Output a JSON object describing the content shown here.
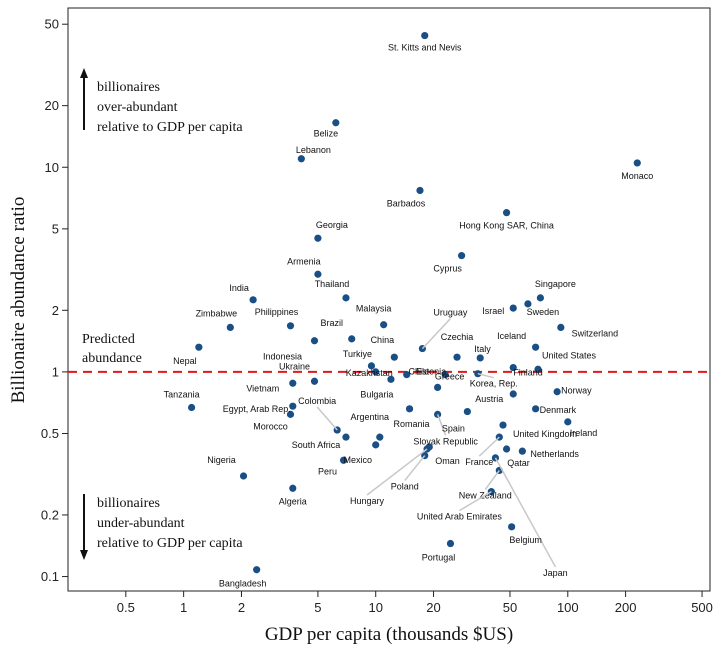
{
  "chart_data": {
    "type": "scatter",
    "xlabel": "GDP per capita (thousands $US)",
    "ylabel": "Billionaire abundance ratio",
    "x_scale": "log",
    "y_scale": "log",
    "xlim": [
      0.25,
      550
    ],
    "ylim": [
      0.085,
      60
    ],
    "x_ticks": [
      0.5,
      1,
      2,
      5,
      10,
      20,
      50,
      100,
      200,
      500
    ],
    "y_ticks": [
      0.1,
      0.2,
      0.5,
      1,
      2,
      5,
      10,
      20,
      50
    ],
    "grid": false,
    "reference_line": {
      "y": 1,
      "label": "Predicted abundance",
      "color": "#e0191b"
    },
    "annotations": {
      "over": [
        "billionaires",
        "over-abundant",
        "relative to GDP per capita"
      ],
      "under": [
        "billionaires",
        "under-abundant",
        "relative to GDP per capita"
      ]
    },
    "point_color": "#1a4f86",
    "points": [
      {
        "name": "St. Kitts and Nevis",
        "x": 18.0,
        "y": 44.0
      },
      {
        "name": "Belize",
        "x": 6.2,
        "y": 16.5
      },
      {
        "name": "Lebanon",
        "x": 4.1,
        "y": 11.0
      },
      {
        "name": "Monaco",
        "x": 230.0,
        "y": 10.5
      },
      {
        "name": "Barbados",
        "x": 17.0,
        "y": 7.7
      },
      {
        "name": "Hong Kong SAR, China",
        "x": 48.0,
        "y": 6.0
      },
      {
        "name": "Georgia",
        "x": 5.0,
        "y": 4.5
      },
      {
        "name": "Cyprus",
        "x": 28.0,
        "y": 3.7
      },
      {
        "name": "Armenia",
        "x": 5.0,
        "y": 3.0
      },
      {
        "name": "India",
        "x": 2.3,
        "y": 2.25
      },
      {
        "name": "Thailand",
        "x": 7.0,
        "y": 2.3
      },
      {
        "name": "Singapore",
        "x": 72.0,
        "y": 2.3
      },
      {
        "name": "Israel",
        "x": 52.0,
        "y": 2.05
      },
      {
        "name": "Sweden",
        "x": 62.0,
        "y": 2.15
      },
      {
        "name": "Zimbabwe",
        "x": 1.75,
        "y": 1.65
      },
      {
        "name": "Philippines",
        "x": 3.6,
        "y": 1.68
      },
      {
        "name": "Malaysia",
        "x": 11.0,
        "y": 1.7
      },
      {
        "name": "Switzerland",
        "x": 92.0,
        "y": 1.65
      },
      {
        "name": "Uruguay",
        "x": 17.5,
        "y": 1.3
      },
      {
        "name": "Brazil",
        "x": 7.5,
        "y": 1.45
      },
      {
        "name": "Nepal",
        "x": 1.2,
        "y": 1.32
      },
      {
        "name": "Iceland",
        "x": 68.0,
        "y": 1.32
      },
      {
        "name": "Czechia",
        "x": 26.5,
        "y": 1.18
      },
      {
        "name": "United States",
        "x": 70.0,
        "y": 1.03
      },
      {
        "name": "Indonesia",
        "x": 4.8,
        "y": 1.42
      },
      {
        "name": "Turkiye",
        "x": 9.5,
        "y": 1.07
      },
      {
        "name": "China",
        "x": 12.5,
        "y": 1.18
      },
      {
        "name": "Chile",
        "x": 14.5,
        "y": 0.97
      },
      {
        "name": "Estonia",
        "x": 23.0,
        "y": 0.97
      },
      {
        "name": "Italy",
        "x": 35.0,
        "y": 1.17
      },
      {
        "name": "Ukraine",
        "x": 4.8,
        "y": 0.9
      },
      {
        "name": "Kazakhstan",
        "x": 10.0,
        "y": 1.0
      },
      {
        "name": "Korea, Rep.",
        "x": 34.0,
        "y": 0.98
      },
      {
        "name": "Finland",
        "x": 52.0,
        "y": 1.05
      },
      {
        "name": "Vietnam",
        "x": 3.7,
        "y": 0.88
      },
      {
        "name": "Bulgaria",
        "x": 12.0,
        "y": 0.92
      },
      {
        "name": "Norway",
        "x": 88.0,
        "y": 0.8
      },
      {
        "name": "Tanzania",
        "x": 1.1,
        "y": 0.67
      },
      {
        "name": "Egypt, Arab Rep.",
        "x": 3.7,
        "y": 0.68
      },
      {
        "name": "Colombia",
        "x": 6.3,
        "y": 0.52
      },
      {
        "name": "Greece",
        "x": 21.0,
        "y": 0.84
      },
      {
        "name": "Austria",
        "x": 52.0,
        "y": 0.78
      },
      {
        "name": "Denmark",
        "x": 68.0,
        "y": 0.66
      },
      {
        "name": "Morocco",
        "x": 3.6,
        "y": 0.62
      },
      {
        "name": "Romania",
        "x": 15.0,
        "y": 0.66
      },
      {
        "name": "Slovak Republic",
        "x": 21.0,
        "y": 0.62
      },
      {
        "name": "Spain",
        "x": 30.0,
        "y": 0.64
      },
      {
        "name": "Ireland",
        "x": 100.0,
        "y": 0.57
      },
      {
        "name": "Argentina",
        "x": 10.5,
        "y": 0.48
      },
      {
        "name": "South Africa",
        "x": 7.0,
        "y": 0.48
      },
      {
        "name": "United Kingdom",
        "x": 46.0,
        "y": 0.55
      },
      {
        "name": "Mexico",
        "x": 10.0,
        "y": 0.44
      },
      {
        "name": "Peru",
        "x": 6.8,
        "y": 0.37
      },
      {
        "name": "Oman",
        "x": 19.0,
        "y": 0.43
      },
      {
        "name": "France",
        "x": 44.0,
        "y": 0.48
      },
      {
        "name": "Netherlands",
        "x": 58.0,
        "y": 0.41
      },
      {
        "name": "Nigeria",
        "x": 2.05,
        "y": 0.31
      },
      {
        "name": "Poland",
        "x": 18.0,
        "y": 0.39
      },
      {
        "name": "Qatar",
        "x": 48.0,
        "y": 0.42
      },
      {
        "name": "New Zealand",
        "x": 44.0,
        "y": 0.33
      },
      {
        "name": "Algeria",
        "x": 3.7,
        "y": 0.27
      },
      {
        "name": "Hungary",
        "x": 18.5,
        "y": 0.42
      },
      {
        "name": "United Arab Emirates",
        "x": 40.0,
        "y": 0.26
      },
      {
        "name": "Japan",
        "x": 42.0,
        "y": 0.38
      },
      {
        "name": "Belgium",
        "x": 51.0,
        "y": 0.175
      },
      {
        "name": "Portugal",
        "x": 24.5,
        "y": 0.145
      },
      {
        "name": "Bangladesh",
        "x": 2.4,
        "y": 0.108
      }
    ]
  }
}
